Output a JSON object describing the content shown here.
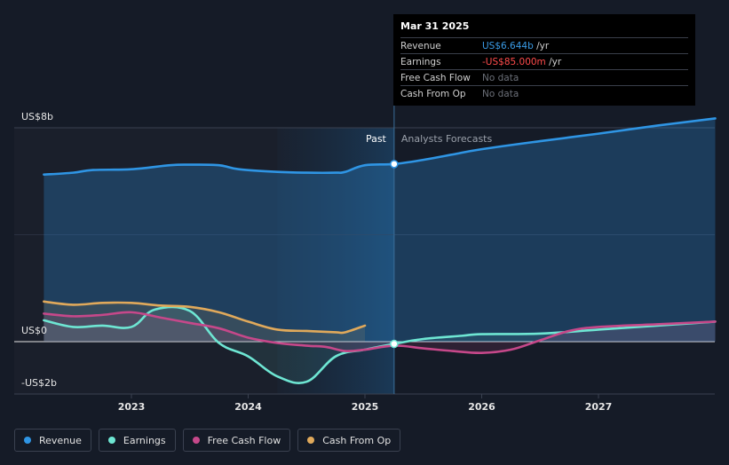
{
  "tooltip": {
    "date": "Mar 31 2025",
    "rows": [
      {
        "label": "Revenue",
        "value": "US$6.644b",
        "unit": " /yr",
        "color": "#3a9be6"
      },
      {
        "label": "Earnings",
        "value": "-US$85.000m",
        "unit": " /yr",
        "color": "#ff4b4b"
      },
      {
        "label": "Free Cash Flow",
        "value": "No data",
        "unit": "",
        "color": "#6b6f78"
      },
      {
        "label": "Cash From Op",
        "value": "No data",
        "unit": "",
        "color": "#6b6f78"
      }
    ]
  },
  "legend": [
    {
      "label": "Revenue",
      "color": "#2f95e4"
    },
    {
      "label": "Earnings",
      "color": "#6ee6d3"
    },
    {
      "label": "Free Cash Flow",
      "color": "#c6488a"
    },
    {
      "label": "Cash From Op",
      "color": "#e0a95b"
    }
  ],
  "chart_data": {
    "type": "line",
    "xlabel": "",
    "ylabel": "",
    "y_axis_labels": [
      "US$8b",
      "US$0",
      "-US$2b"
    ],
    "x_ticks": [
      2023,
      2024,
      2025,
      2026,
      2027
    ],
    "xlim": [
      2022.25,
      2028.0
    ],
    "ylim": [
      -2,
      8
    ],
    "past_label": "Past",
    "forecast_label": "Analysts Forecasts",
    "divider_x": 2025.25,
    "series": [
      {
        "name": "Revenue",
        "color": "#2f95e4",
        "points": [
          [
            2022.25,
            6.25
          ],
          [
            2022.5,
            6.32
          ],
          [
            2022.67,
            6.42
          ],
          [
            2023.0,
            6.45
          ],
          [
            2023.33,
            6.6
          ],
          [
            2023.5,
            6.62
          ],
          [
            2023.75,
            6.6
          ],
          [
            2023.92,
            6.45
          ],
          [
            2024.25,
            6.35
          ],
          [
            2024.5,
            6.32
          ],
          [
            2024.75,
            6.32
          ],
          [
            2024.83,
            6.35
          ],
          [
            2025.0,
            6.6
          ],
          [
            2025.25,
            6.644
          ],
          [
            2025.5,
            6.8
          ],
          [
            2025.75,
            7.0
          ],
          [
            2026.0,
            7.2
          ],
          [
            2026.5,
            7.5
          ],
          [
            2027.0,
            7.78
          ],
          [
            2027.5,
            8.08
          ],
          [
            2028.0,
            8.35
          ]
        ]
      },
      {
        "name": "Earnings",
        "color": "#6ee6d3",
        "points": [
          [
            2022.25,
            0.8
          ],
          [
            2022.5,
            0.55
          ],
          [
            2022.75,
            0.6
          ],
          [
            2023.0,
            0.55
          ],
          [
            2023.2,
            1.2
          ],
          [
            2023.5,
            1.15
          ],
          [
            2023.75,
            -0.05
          ],
          [
            2024.0,
            -0.55
          ],
          [
            2024.25,
            -1.3
          ],
          [
            2024.5,
            -1.5
          ],
          [
            2024.75,
            -0.55
          ],
          [
            2025.0,
            -0.3
          ],
          [
            2025.25,
            -0.085
          ],
          [
            2025.5,
            0.1
          ],
          [
            2025.83,
            0.22
          ],
          [
            2026.0,
            0.28
          ],
          [
            2026.5,
            0.3
          ],
          [
            2027.0,
            0.45
          ],
          [
            2027.5,
            0.6
          ],
          [
            2028.0,
            0.75
          ]
        ]
      },
      {
        "name": "Free Cash Flow",
        "color": "#c6488a",
        "points": [
          [
            2022.25,
            1.05
          ],
          [
            2022.5,
            0.95
          ],
          [
            2022.75,
            1.0
          ],
          [
            2023.0,
            1.1
          ],
          [
            2023.25,
            0.9
          ],
          [
            2023.5,
            0.7
          ],
          [
            2023.75,
            0.5
          ],
          [
            2024.0,
            0.15
          ],
          [
            2024.25,
            -0.05
          ],
          [
            2024.5,
            -0.15
          ],
          [
            2024.67,
            -0.2
          ],
          [
            2024.83,
            -0.35
          ],
          [
            2025.0,
            -0.3
          ],
          [
            2025.25,
            -0.15
          ],
          [
            2025.5,
            -0.25
          ],
          [
            2025.75,
            -0.35
          ],
          [
            2026.0,
            -0.42
          ],
          [
            2026.25,
            -0.3
          ],
          [
            2026.5,
            0.05
          ],
          [
            2026.75,
            0.4
          ],
          [
            2027.0,
            0.55
          ],
          [
            2027.5,
            0.65
          ],
          [
            2028.0,
            0.75
          ]
        ]
      },
      {
        "name": "Cash From Op",
        "color": "#e0a95b",
        "points": [
          [
            2022.25,
            1.5
          ],
          [
            2022.5,
            1.38
          ],
          [
            2022.75,
            1.45
          ],
          [
            2023.0,
            1.45
          ],
          [
            2023.25,
            1.35
          ],
          [
            2023.5,
            1.3
          ],
          [
            2023.75,
            1.1
          ],
          [
            2024.0,
            0.75
          ],
          [
            2024.25,
            0.45
          ],
          [
            2024.5,
            0.4
          ],
          [
            2024.75,
            0.35
          ],
          [
            2024.83,
            0.35
          ],
          [
            2025.0,
            0.6
          ]
        ]
      }
    ]
  }
}
